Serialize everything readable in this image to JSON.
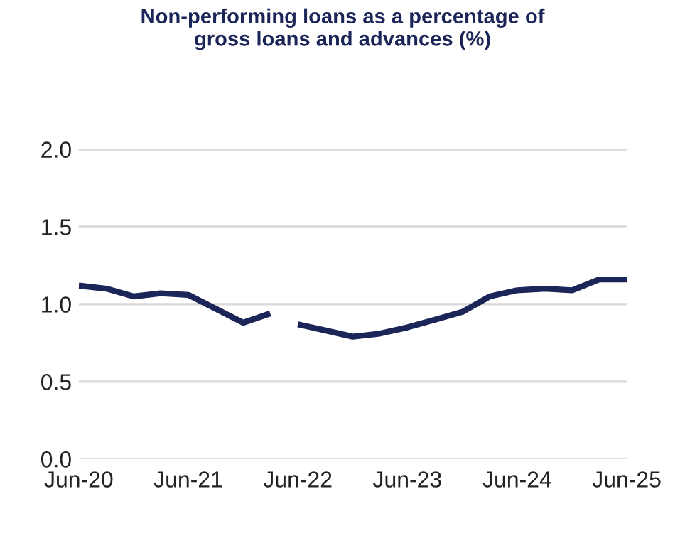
{
  "chart_data": {
    "type": "line",
    "title": "Non-performing loans as a percentage of\ngross loans and advances (%)",
    "series": [
      {
        "color": "#1c2557",
        "x": [
          "2020-06",
          "2020-09",
          "2020-12",
          "2021-03",
          "2021-06",
          "2021-09",
          "2021-12",
          "2022-03"
        ],
        "values": [
          1.12,
          1.1,
          1.05,
          1.07,
          1.06,
          0.97,
          0.88,
          0.94
        ]
      },
      {
        "color": "#1c2557",
        "x": [
          "2022-06",
          "2022-09",
          "2022-12",
          "2023-03",
          "2023-06",
          "2023-09",
          "2023-12",
          "2024-03",
          "2024-06",
          "2024-09",
          "2024-12",
          "2025-03",
          "2025-06"
        ],
        "values": [
          0.87,
          0.83,
          0.79,
          0.81,
          0.85,
          0.9,
          0.95,
          1.05,
          1.09,
          1.1,
          1.09,
          1.16,
          1.16
        ]
      }
    ],
    "xlim": [
      "2020-06",
      "2025-06"
    ],
    "xticks": [
      {
        "value": "2020-06",
        "label": "Jun-20"
      },
      {
        "value": "2021-06",
        "label": "Jun-21"
      },
      {
        "value": "2022-06",
        "label": "Jun-22"
      },
      {
        "value": "2023-06",
        "label": "Jun-23"
      },
      {
        "value": "2024-06",
        "label": "Jun-24"
      },
      {
        "value": "2025-06",
        "label": "Jun-25"
      }
    ],
    "ylim": [
      0,
      2.0
    ],
    "yticks": [
      {
        "value": 0,
        "label": "0.0"
      },
      {
        "value": 0.5,
        "label": "0.5"
      },
      {
        "value": 1.0,
        "label": "1.0"
      },
      {
        "value": 1.5,
        "label": "1.5"
      },
      {
        "value": 2.0,
        "label": "2.0"
      }
    ],
    "grid": "y",
    "marker": "none",
    "line_style": "solid"
  }
}
